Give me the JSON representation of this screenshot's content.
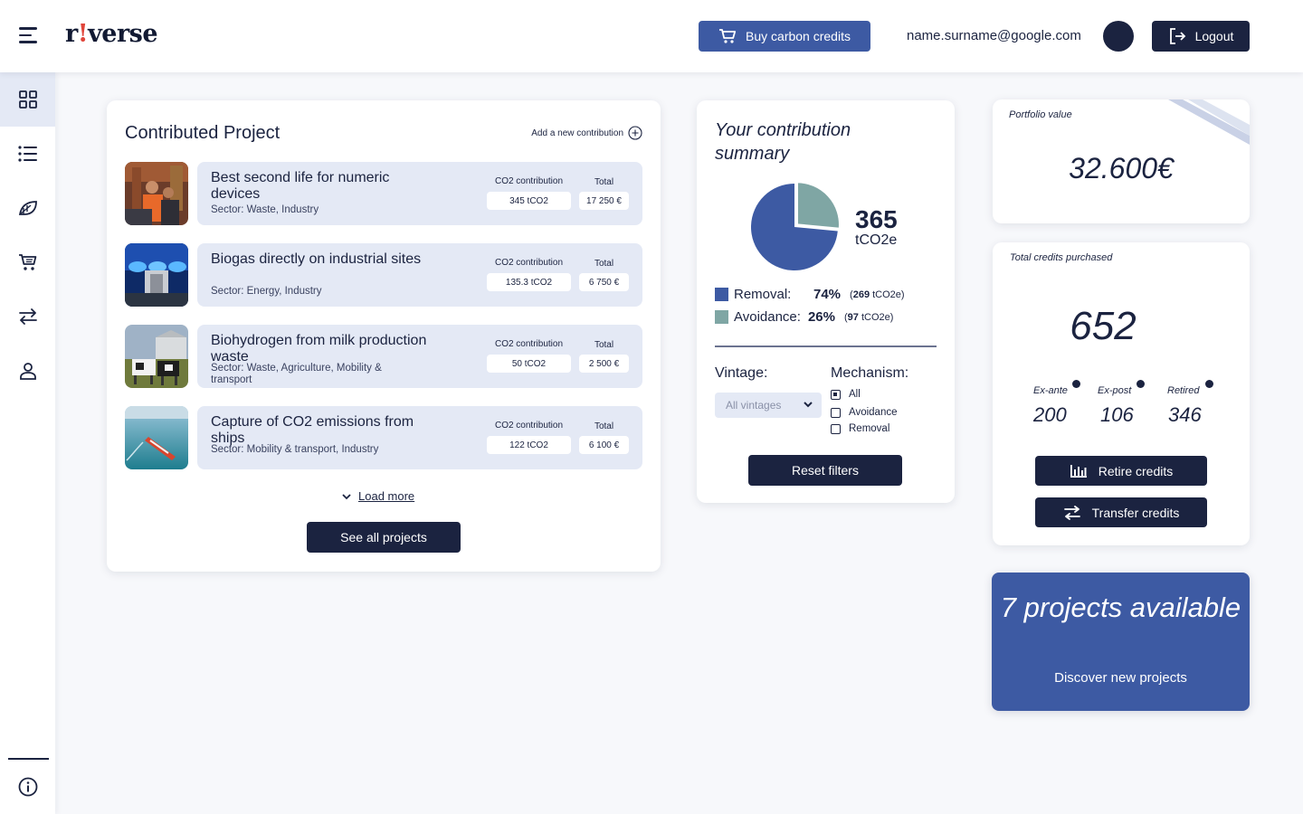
{
  "header": {
    "logo_text_a": "r",
    "logo_text_dot": "!",
    "logo_text_b": "verse",
    "buy_label": "Buy carbon credits",
    "email": "name.surname@google.com",
    "logout_label": "Logout"
  },
  "sidebar": {
    "items": [
      {
        "icon": "dashboard-grid-icon",
        "active": true
      },
      {
        "icon": "list-icon",
        "active": false
      },
      {
        "icon": "leaf-icon",
        "active": false
      },
      {
        "icon": "cart-icon",
        "active": false
      },
      {
        "icon": "transfer-arrows-icon",
        "active": false
      },
      {
        "icon": "user-icon",
        "active": false
      }
    ],
    "bottom_icon": "info-icon"
  },
  "contributed": {
    "title": "Contributed Project",
    "add_label": "Add a new contribution",
    "co2_label": "CO2 contribution",
    "total_label": "Total",
    "projects": [
      {
        "name": "Best second life for numeric devices",
        "sector": "Sector: Waste, Industry",
        "co2": "345 tCO2",
        "total": "17 250 €"
      },
      {
        "name": "Biogas directly on industrial sites",
        "sector": "Sector: Energy, Industry",
        "co2": "135.3 tCO2",
        "total": "6 750 €"
      },
      {
        "name": "Biohydrogen from milk production waste",
        "sector": "Sector: Waste, Agriculture, Mobility & transport",
        "co2": "50 tCO2",
        "total": "2 500 €"
      },
      {
        "name": "Capture of CO2 emissions from ships",
        "sector": "Sector: Mobility & transport, Industry",
        "co2": "122 tCO2",
        "total": "6 100 €"
      }
    ],
    "load_more": "Load more",
    "see_all": "See all projects"
  },
  "summary": {
    "title": "Your contribution summary",
    "total_value": "365",
    "total_unit": "tCO2e",
    "removal_label": "Removal:",
    "removal_pct": "74%",
    "removal_amount_open": "(",
    "removal_amount": "269",
    "removal_amount_unit": "tCO2e)",
    "avoidance_label": "Avoidance:",
    "avoidance_pct": "26%",
    "avoidance_amount_open": "(",
    "avoidance_amount": "97",
    "avoidance_amount_unit": "tCO2e)",
    "vintage_label": "Vintage:",
    "vintage_selected": "All vintages",
    "mechanism_label": "Mechanism:",
    "mechanisms": [
      {
        "label": "All",
        "checked": true
      },
      {
        "label": "Avoidance",
        "checked": false
      },
      {
        "label": "Removal",
        "checked": false
      }
    ],
    "reset_label": "Reset filters",
    "colors": {
      "removal": "#3d5aa3",
      "avoidance": "#7fa6a4"
    }
  },
  "chart_data": {
    "type": "pie",
    "title": "",
    "slices": [
      {
        "label": "Removal",
        "value": 269,
        "percent": 74
      },
      {
        "label": "Avoidance",
        "value": 97,
        "percent": 26
      }
    ]
  },
  "portfolio": {
    "label": "Portfolio value",
    "value": "32.600€"
  },
  "credits": {
    "label": "Total credits purchased",
    "value": "652",
    "stats": [
      {
        "label": "Ex-ante",
        "value": "200"
      },
      {
        "label": "Ex-post",
        "value": "106"
      },
      {
        "label": "Retired",
        "value": "346"
      }
    ],
    "retire_label": "Retire credits",
    "transfer_label": "Transfer credits"
  },
  "promo": {
    "title": "7 projects available",
    "subtitle": "Discover new projects"
  }
}
